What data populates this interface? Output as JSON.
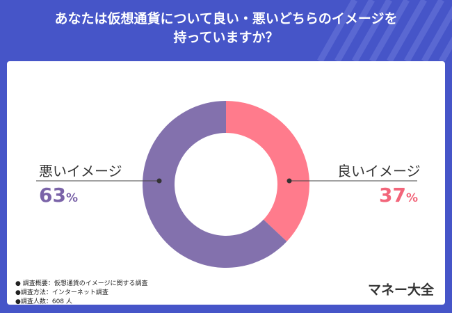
{
  "title": {
    "line1": "あなたは仮想通貨について良い・悪いどちらのイメージを",
    "line2": "持っていますか？"
  },
  "chart_data": {
    "type": "pie",
    "title": "あなたは仮想通貨について良い・悪いどちらのイメージを持っていますか？",
    "categories": [
      "良いイメージ",
      "悪いイメージ"
    ],
    "values": [
      37,
      63
    ],
    "unit": "%",
    "colors": [
      "#ff7b8c",
      "#8371ad"
    ]
  },
  "labels": {
    "good": {
      "label": "良いイメージ",
      "value": "37",
      "unit": "%"
    },
    "bad": {
      "label": "悪いイメージ",
      "value": "63",
      "unit": "%"
    }
  },
  "notes": [
    "● 調査概要：仮想通貨のイメージに関する調査",
    "●調査方法：インターネット調査",
    "●調査人数：608 人"
  ],
  "brand": "マネー大全",
  "colors": {
    "background": "#4655c8",
    "good": "#ff7b8c",
    "bad": "#8371ad",
    "bad_text": "#7a63a8",
    "good_text": "#f2657a"
  }
}
